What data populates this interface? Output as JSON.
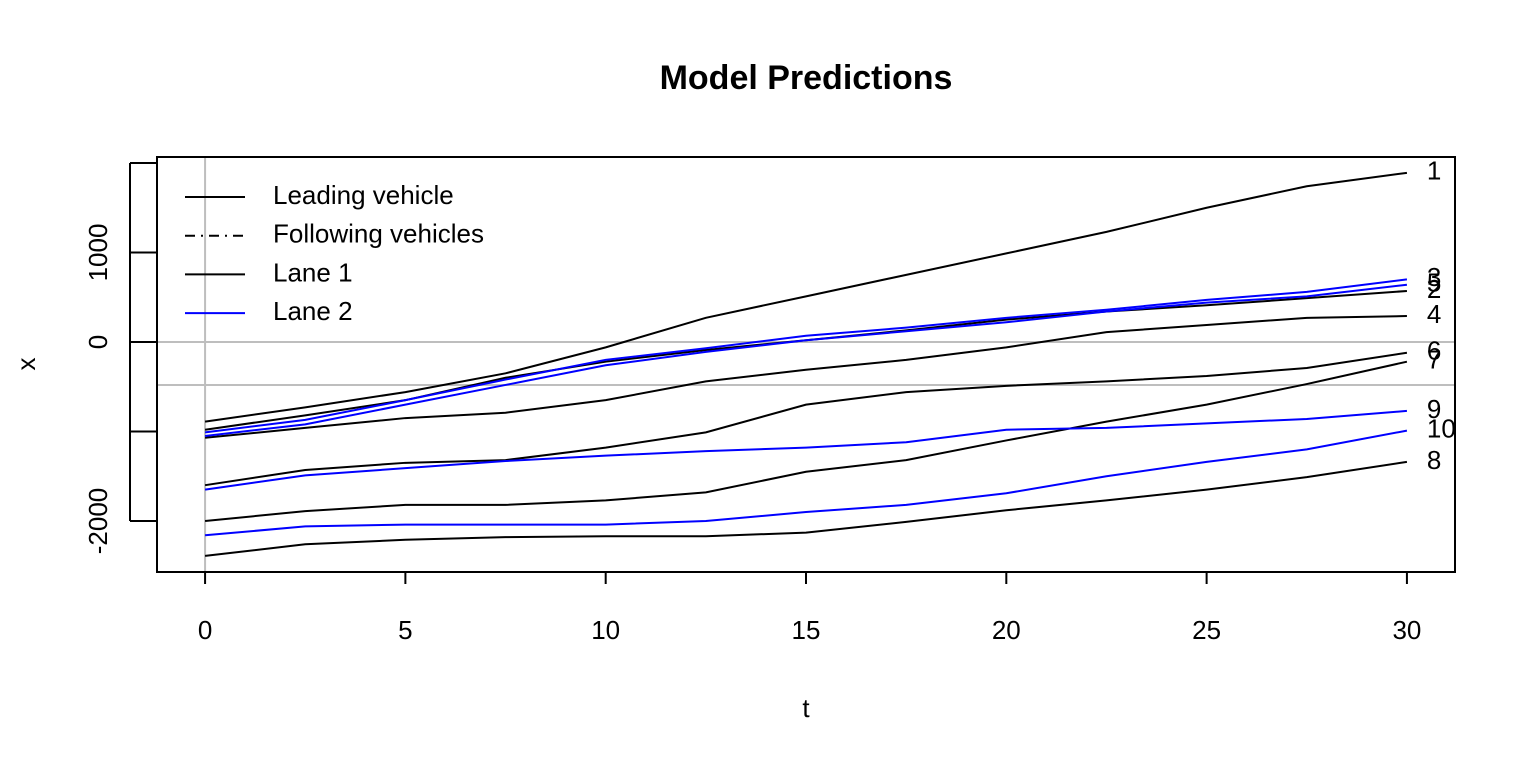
{
  "chart_data": {
    "type": "line",
    "title": "Model Predictions",
    "x_label": "t",
    "y_label": "x",
    "x": [
      0,
      2.5,
      5,
      7.5,
      10,
      12.5,
      15,
      17.5,
      20,
      22.5,
      25,
      27.5,
      30
    ],
    "xlim": [
      -1.2,
      31.2
    ],
    "ylim": [
      -2570,
      2067
    ],
    "xticks": [
      0,
      5,
      10,
      15,
      20,
      25,
      30
    ],
    "yticks": [
      -2000,
      {
        "value": -1000,
        "label": null
      },
      0,
      1000,
      {
        "value": 2000,
        "label": null
      }
    ],
    "hlines": [
      0,
      -480
    ],
    "vlines": [
      0
    ],
    "reference_color": "#bebebe",
    "legend_position": "top-left",
    "legend": [
      {
        "label": "Leading vehicle",
        "color": "#000000",
        "dash": "solid"
      },
      {
        "label": "Following vehicles",
        "color": "#000000",
        "dash": "dashdot"
      },
      {
        "label": "Lane 1",
        "color": "#000000",
        "dash": "solid"
      },
      {
        "label": "Lane 2",
        "color": "#0000ff",
        "dash": "solid"
      }
    ],
    "series": [
      {
        "name": "1",
        "color": "#000000",
        "values": [
          -890,
          -730,
          -560,
          -350,
          -60,
          270,
          510,
          750,
          990,
          1230,
          1500,
          1740,
          1890
        ]
      },
      {
        "name": "2",
        "color": "#000000",
        "values": [
          -980,
          -820,
          -650,
          -400,
          -220,
          -90,
          20,
          130,
          250,
          340,
          410,
          490,
          570
        ]
      },
      {
        "name": "3",
        "color": "#0000ff",
        "values": [
          -1010,
          -870,
          -650,
          -420,
          -200,
          -70,
          70,
          160,
          270,
          360,
          470,
          560,
          700
        ]
      },
      {
        "name": "4",
        "color": "#000000",
        "values": [
          -1070,
          -960,
          -850,
          -790,
          -650,
          -440,
          -310,
          -200,
          -60,
          110,
          190,
          270,
          290
        ]
      },
      {
        "name": "5",
        "color": "#0000ff",
        "values": [
          -1050,
          -920,
          -700,
          -480,
          -260,
          -110,
          20,
          120,
          220,
          340,
          440,
          510,
          640
        ]
      },
      {
        "name": "6",
        "color": "#000000",
        "values": [
          -1600,
          -1430,
          -1350,
          -1320,
          -1180,
          -1010,
          -700,
          -560,
          -490,
          -440,
          -380,
          -290,
          -120
        ]
      },
      {
        "name": "7",
        "color": "#000000",
        "values": [
          -2000,
          -1890,
          -1820,
          -1820,
          -1770,
          -1680,
          -1450,
          -1320,
          -1100,
          -890,
          -700,
          -470,
          -220
        ]
      },
      {
        "name": "8",
        "color": "#000000",
        "values": [
          -2390,
          -2260,
          -2210,
          -2180,
          -2170,
          -2170,
          -2130,
          -2010,
          -1880,
          -1770,
          -1650,
          -1510,
          -1340
        ]
      },
      {
        "name": "9",
        "color": "#0000ff",
        "values": [
          -1650,
          -1490,
          -1410,
          -1330,
          -1270,
          -1220,
          -1180,
          -1120,
          -980,
          -960,
          -910,
          -860,
          -770
        ]
      },
      {
        "name": "10",
        "color": "#0000ff",
        "values": [
          -2160,
          -2060,
          -2040,
          -2040,
          -2040,
          -2000,
          -1900,
          -1820,
          -1690,
          -1500,
          -1340,
          -1200,
          -990
        ]
      }
    ]
  }
}
